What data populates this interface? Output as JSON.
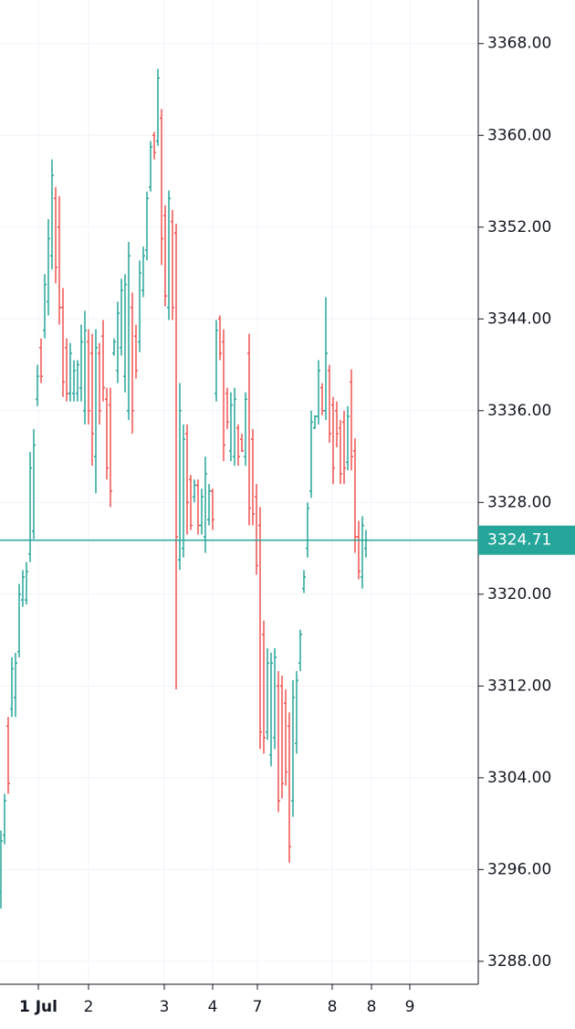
{
  "chart_data": {
    "type": "ohlc",
    "up_color": "#26a69a",
    "down_color": "#ef5350",
    "grid": true,
    "xlim": [
      -0.25,
      130.75
    ],
    "ylim": [
      3286,
      3371.8
    ],
    "yticks": [
      {
        "value": 3368,
        "label": "3368.00"
      },
      {
        "value": 3360,
        "label": "3360.00"
      },
      {
        "value": 3352,
        "label": "3352.00"
      },
      {
        "value": 3344,
        "label": "3344.00"
      },
      {
        "value": 3336,
        "label": "3336.00"
      },
      {
        "value": 3328,
        "label": "3328.00"
      },
      {
        "value": 3320,
        "label": "3320.00"
      },
      {
        "value": 3312,
        "label": "3312.00"
      },
      {
        "value": 3304,
        "label": "3304.00"
      },
      {
        "value": 3296,
        "label": "3296.00"
      },
      {
        "value": 3288,
        "label": "3288.00"
      }
    ],
    "xticks": [
      {
        "value": 10.25,
        "label": "1 Jul"
      },
      {
        "value": 24,
        "label": "2"
      },
      {
        "value": 44.75,
        "label": "3"
      },
      {
        "value": 58,
        "label": "4"
      },
      {
        "value": 70.25,
        "label": "7"
      },
      {
        "value": 90.75,
        "label": "8"
      },
      {
        "value": 101.5,
        "label": "8"
      },
      {
        "value": 112,
        "label": "9"
      }
    ],
    "last_price": 3324.71,
    "open": [
      3294,
      3299,
      3308.5,
      3310,
      3311,
      3315,
      3319.5,
      3319.5,
      3323.5,
      3325.5,
      3337,
      3341.5,
      3343,
      3345.5,
      3349.5,
      3354.5,
      3352,
      3345,
      3341.5,
      3337.5,
      3337.5,
      3337.5,
      3338,
      3336,
      3342,
      3341,
      3332,
      3341,
      3342.5,
      3337,
      3336.5,
      3341,
      3339.5,
      3341.5,
      3339,
      3336,
      3345,
      3342.5,
      3342,
      3346.5,
      3350,
      3355.5,
      3360,
      3359.5,
      3361.5,
      3353,
      3345,
      3352.5,
      3351.5,
      3323,
      3324,
      3334,
      3330,
      3328.5,
      3329.5,
      3326,
      3325,
      3326.5,
      3329,
      3337.5,
      3344,
      3342,
      3337.5,
      3332.5,
      3332,
      3334.5,
      3333.5,
      3332,
      3341,
      3333.5,
      3328.5,
      3326,
      3316.5,
      3308,
      3306,
      3307.5,
      3312,
      3312,
      3310.5,
      3308.5,
      3302,
      3307,
      3314,
      3320.5,
      3324,
      3329,
      3334.5,
      3335.5,
      3338,
      3336,
      3339.5,
      3336.5,
      3336,
      3334.5,
      3335,
      3331.5,
      3338.5,
      3332.5,
      3325,
      3321.5,
      3324
    ],
    "high": [
      3299.4,
      3302.6,
      3309.3,
      3314.5,
      3314.9,
      3320.9,
      3322.1,
      3322.8,
      3332.4,
      3334.4,
      3340,
      3342.3,
      3347.9,
      3352.7,
      3357.9,
      3355.5,
      3354.7,
      3346.7,
      3342.3,
      3341.9,
      3340.4,
      3340.4,
      3343.5,
      3344.7,
      3343.1,
      3342.7,
      3343.1,
      3341.9,
      3343.9,
      3338,
      3338,
      3342.3,
      3345.5,
      3347.5,
      3347.9,
      3350.7,
      3346.3,
      3343.5,
      3349.1,
      3350.3,
      3355.1,
      3359.5,
      3360.3,
      3365.8,
      3362.3,
      3353.9,
      3355.2,
      3353.5,
      3352.3,
      3338.4,
      3334.8,
      3334.8,
      3330.4,
      3330,
      3330,
      3329.2,
      3332,
      3329.6,
      3329.2,
      3343.9,
      3344.3,
      3343.1,
      3338,
      3337.6,
      3338,
      3334.8,
      3334,
      3337.6,
      3342.7,
      3334.4,
      3329.6,
      3327.6,
      3317.7,
      3315.3,
      3314.9,
      3315.3,
      3313.3,
      3312.9,
      3311.7,
      3309.7,
      3312.5,
      3313.3,
      3316.9,
      3322.1,
      3328,
      3336,
      3335.6,
      3340.4,
      3338.4,
      3345.9,
      3340,
      3337.2,
      3336.8,
      3335.2,
      3336,
      3336.4,
      3339.6,
      3333.6,
      3326.4,
      3326.8,
      3325.6
    ],
    "low": [
      3292.6,
      3298.2,
      3302.6,
      3309.3,
      3309.3,
      3314.5,
      3318.9,
      3319.1,
      3322.8,
      3324.8,
      3336.4,
      3338.4,
      3342.3,
      3344.3,
      3348.3,
      3347.1,
      3343.5,
      3337.2,
      3336.8,
      3336.8,
      3336.8,
      3336.8,
      3336.8,
      3334.8,
      3334.8,
      3331.2,
      3328.8,
      3334.8,
      3336.8,
      3330,
      3327.6,
      3340.8,
      3338.4,
      3340.8,
      3337.6,
      3335.2,
      3334,
      3338.8,
      3341.1,
      3345.9,
      3349.1,
      3355.1,
      3357.9,
      3359.1,
      3348.7,
      3345.1,
      3343.9,
      3343.9,
      3311.7,
      3322.1,
      3323.2,
      3325.2,
      3325.6,
      3328,
      3325.2,
      3325.2,
      3323.6,
      3326,
      3325.6,
      3336.8,
      3340.4,
      3331.6,
      3334.4,
      3331.6,
      3331.2,
      3331.2,
      3332.4,
      3331.2,
      3326,
      3326,
      3321.7,
      3306.5,
      3306.1,
      3307.3,
      3305,
      3306.5,
      3301,
      3302.2,
      3303.3,
      3296.6,
      3300.6,
      3306.1,
      3313.3,
      3320.1,
      3323.2,
      3328.4,
      3334.4,
      3334.8,
      3335.6,
      3335.2,
      3333.2,
      3329.6,
      3332.8,
      3329.6,
      3329.6,
      3330.8,
      3330.8,
      3323.6,
      3321.3,
      3320.5,
      3323.2
    ],
    "close": [
      3298.5,
      3302,
      3303.5,
      3313.5,
      3314,
      3320,
      3321.5,
      3322,
      3331,
      3333,
      3339,
      3339,
      3347,
      3351,
      3356.5,
      3348.5,
      3345,
      3338.5,
      3337.5,
      3341,
      3339.5,
      3340,
      3342,
      3343,
      3336,
      3334,
      3341.5,
      3336,
      3338,
      3331,
      3329,
      3342,
      3344.5,
      3346.5,
      3347,
      3349.5,
      3336,
      3339.5,
      3348,
      3349.5,
      3354.5,
      3359,
      3358.5,
      3365,
      3351,
      3346,
      3354.5,
      3345,
      3325,
      3336,
      3333.5,
      3328,
      3326,
      3329.5,
      3326,
      3328.5,
      3330.5,
      3329,
      3326.5,
      3343,
      3341,
      3333,
      3335,
      3336.5,
      3337,
      3332,
      3332.5,
      3337,
      3327.5,
      3327,
      3322.5,
      3308,
      3307.5,
      3314,
      3314,
      3314.5,
      3302,
      3303.5,
      3304.5,
      3298,
      3311,
      3312.5,
      3316.5,
      3321.5,
      3327.5,
      3335,
      3335.5,
      3339.5,
      3336,
      3341,
      3334,
      3331,
      3334,
      3330.5,
      3331,
      3335.5,
      3332,
      3325,
      3322,
      3326,
      3324.71
    ]
  }
}
